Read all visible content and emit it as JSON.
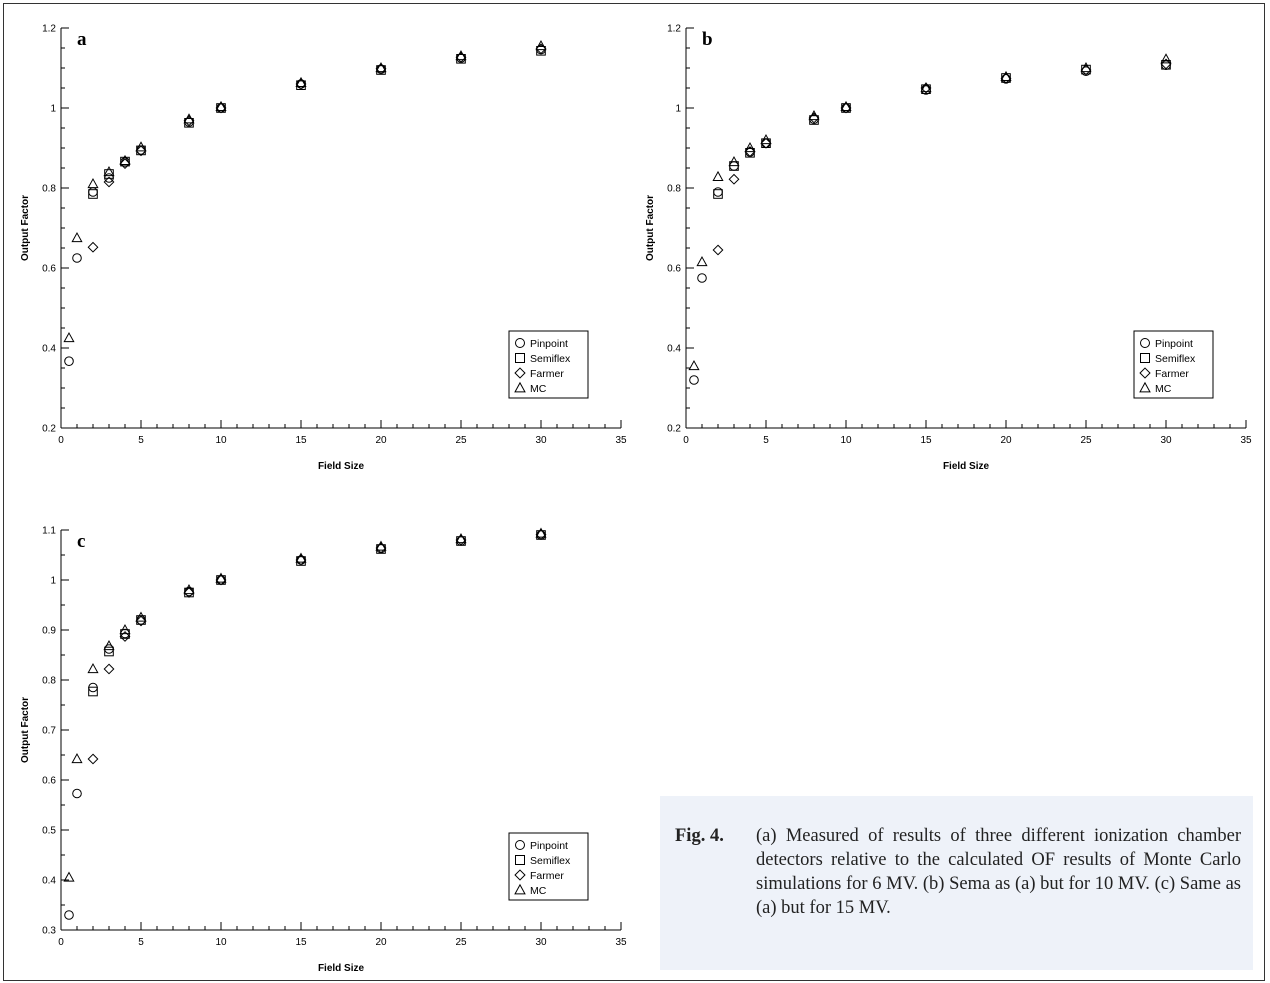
{
  "chart_data": [
    {
      "type": "scatter",
      "panel_label": "a",
      "xlabel": "Field Size",
      "ylabel": "Output Factor",
      "xlim": [
        0,
        35
      ],
      "ylim": [
        0.2,
        1.2
      ],
      "xticks": [
        0,
        5,
        10,
        15,
        20,
        25,
        30,
        35
      ],
      "yticks": [
        0.2,
        0.4,
        0.6,
        0.8,
        1,
        1.2
      ],
      "legend_position": "bottom-right",
      "series": [
        {
          "name": "Pinpoint",
          "marker": "circle",
          "x": [
            0.5,
            1,
            2,
            3,
            4,
            5,
            8,
            10,
            15,
            20,
            25,
            30
          ],
          "y": [
            0.367,
            0.625,
            0.79,
            0.825,
            0.865,
            0.895,
            0.965,
            1.0,
            1.06,
            1.097,
            1.125,
            1.146
          ]
        },
        {
          "name": "Semiflex",
          "marker": "square",
          "x": [
            2,
            3,
            4,
            5,
            8,
            10,
            15,
            20,
            25,
            30
          ],
          "y": [
            0.785,
            0.835,
            0.866,
            0.894,
            0.963,
            1.0,
            1.057,
            1.095,
            1.123,
            1.143
          ]
        },
        {
          "name": "Farmer",
          "marker": "diamond",
          "x": [
            2,
            3,
            4,
            5,
            8,
            10,
            15,
            20,
            25,
            30
          ],
          "y": [
            0.652,
            0.815,
            0.861,
            0.893,
            0.968,
            1.0,
            1.06,
            1.098,
            1.127,
            1.148
          ]
        },
        {
          "name": "MC",
          "marker": "triangle",
          "x": [
            0.5,
            1,
            2,
            3,
            4,
            5,
            8,
            10,
            15,
            20,
            25,
            30
          ],
          "y": [
            0.425,
            0.675,
            0.81,
            0.84,
            0.868,
            0.902,
            0.972,
            1.003,
            1.063,
            1.1,
            1.13,
            1.155
          ]
        }
      ]
    },
    {
      "type": "scatter",
      "panel_label": "b",
      "xlabel": "Field Size",
      "ylabel": "Output Factor",
      "xlim": [
        0,
        35
      ],
      "ylim": [
        0.2,
        1.2
      ],
      "xticks": [
        0,
        5,
        10,
        15,
        20,
        25,
        30,
        35
      ],
      "yticks": [
        0.2,
        0.4,
        0.6,
        0.8,
        1,
        1.2
      ],
      "legend_position": "bottom-right",
      "series": [
        {
          "name": "Pinpoint",
          "marker": "circle",
          "x": [
            0.5,
            1,
            2,
            3,
            4,
            5,
            8,
            10,
            15,
            20,
            25,
            30
          ],
          "y": [
            0.32,
            0.575,
            0.79,
            0.855,
            0.89,
            0.912,
            0.972,
            1.0,
            1.045,
            1.073,
            1.092,
            1.107
          ]
        },
        {
          "name": "Semiflex",
          "marker": "square",
          "x": [
            2,
            3,
            4,
            5,
            8,
            10,
            15,
            20,
            25,
            30
          ],
          "y": [
            0.785,
            0.855,
            0.888,
            0.912,
            0.97,
            1.0,
            1.047,
            1.075,
            1.096,
            1.108
          ]
        },
        {
          "name": "Farmer",
          "marker": "diamond",
          "x": [
            2,
            3,
            4,
            5,
            8,
            10,
            15,
            20,
            25,
            30
          ],
          "y": [
            0.645,
            0.822,
            0.891,
            0.912,
            0.975,
            1.0,
            1.05,
            1.074,
            1.095,
            1.11
          ]
        },
        {
          "name": "MC",
          "marker": "triangle",
          "x": [
            0.5,
            1,
            2,
            3,
            4,
            5,
            8,
            10,
            15,
            20,
            25,
            30
          ],
          "y": [
            0.355,
            0.615,
            0.828,
            0.865,
            0.9,
            0.92,
            0.98,
            1.003,
            1.05,
            1.078,
            1.1,
            1.122
          ]
        }
      ]
    },
    {
      "type": "scatter",
      "panel_label": "c",
      "xlabel": "Field Size",
      "ylabel": "Output Factor",
      "xlim": [
        0,
        35
      ],
      "ylim": [
        0.3,
        1.1
      ],
      "xticks": [
        0,
        5,
        10,
        15,
        20,
        25,
        30,
        35
      ],
      "yticks": [
        0.3,
        0.4,
        0.5,
        0.6,
        0.7,
        0.8,
        0.9,
        1,
        1.1
      ],
      "legend_position": "bottom-right",
      "series": [
        {
          "name": "Pinpoint",
          "marker": "circle",
          "x": [
            0.5,
            1,
            2,
            3,
            4,
            5,
            8,
            10,
            15,
            20,
            25,
            30
          ],
          "y": [
            0.33,
            0.573,
            0.785,
            0.862,
            0.893,
            0.92,
            0.977,
            1.0,
            1.04,
            1.063,
            1.078,
            1.09
          ]
        },
        {
          "name": "Semiflex",
          "marker": "square",
          "x": [
            2,
            3,
            4,
            5,
            8,
            10,
            15,
            20,
            25,
            30
          ],
          "y": [
            0.777,
            0.857,
            0.892,
            0.92,
            0.975,
            1.0,
            1.038,
            1.062,
            1.078,
            1.09
          ]
        },
        {
          "name": "Farmer",
          "marker": "diamond",
          "x": [
            2,
            3,
            4,
            5,
            8,
            10,
            15,
            20,
            25,
            30
          ],
          "y": [
            0.642,
            0.822,
            0.887,
            0.918,
            0.975,
            1.0,
            1.04,
            1.064,
            1.08,
            1.091
          ]
        },
        {
          "name": "MC",
          "marker": "triangle",
          "x": [
            0.5,
            1,
            2,
            3,
            4,
            5,
            8,
            10,
            15,
            20,
            25,
            30
          ],
          "y": [
            0.405,
            0.642,
            0.822,
            0.868,
            0.9,
            0.925,
            0.98,
            1.003,
            1.043,
            1.067,
            1.082,
            1.093
          ]
        }
      ]
    }
  ],
  "caption": {
    "label": "Fig. 4.",
    "text": "(a) Measured of results of three different ionization chamber detectors relative to the calculated OF results of Monte Carlo simulations for 6 MV. (b) Sema as (a) but for 10 MV. (c) Same as (a) but for 15 MV."
  }
}
